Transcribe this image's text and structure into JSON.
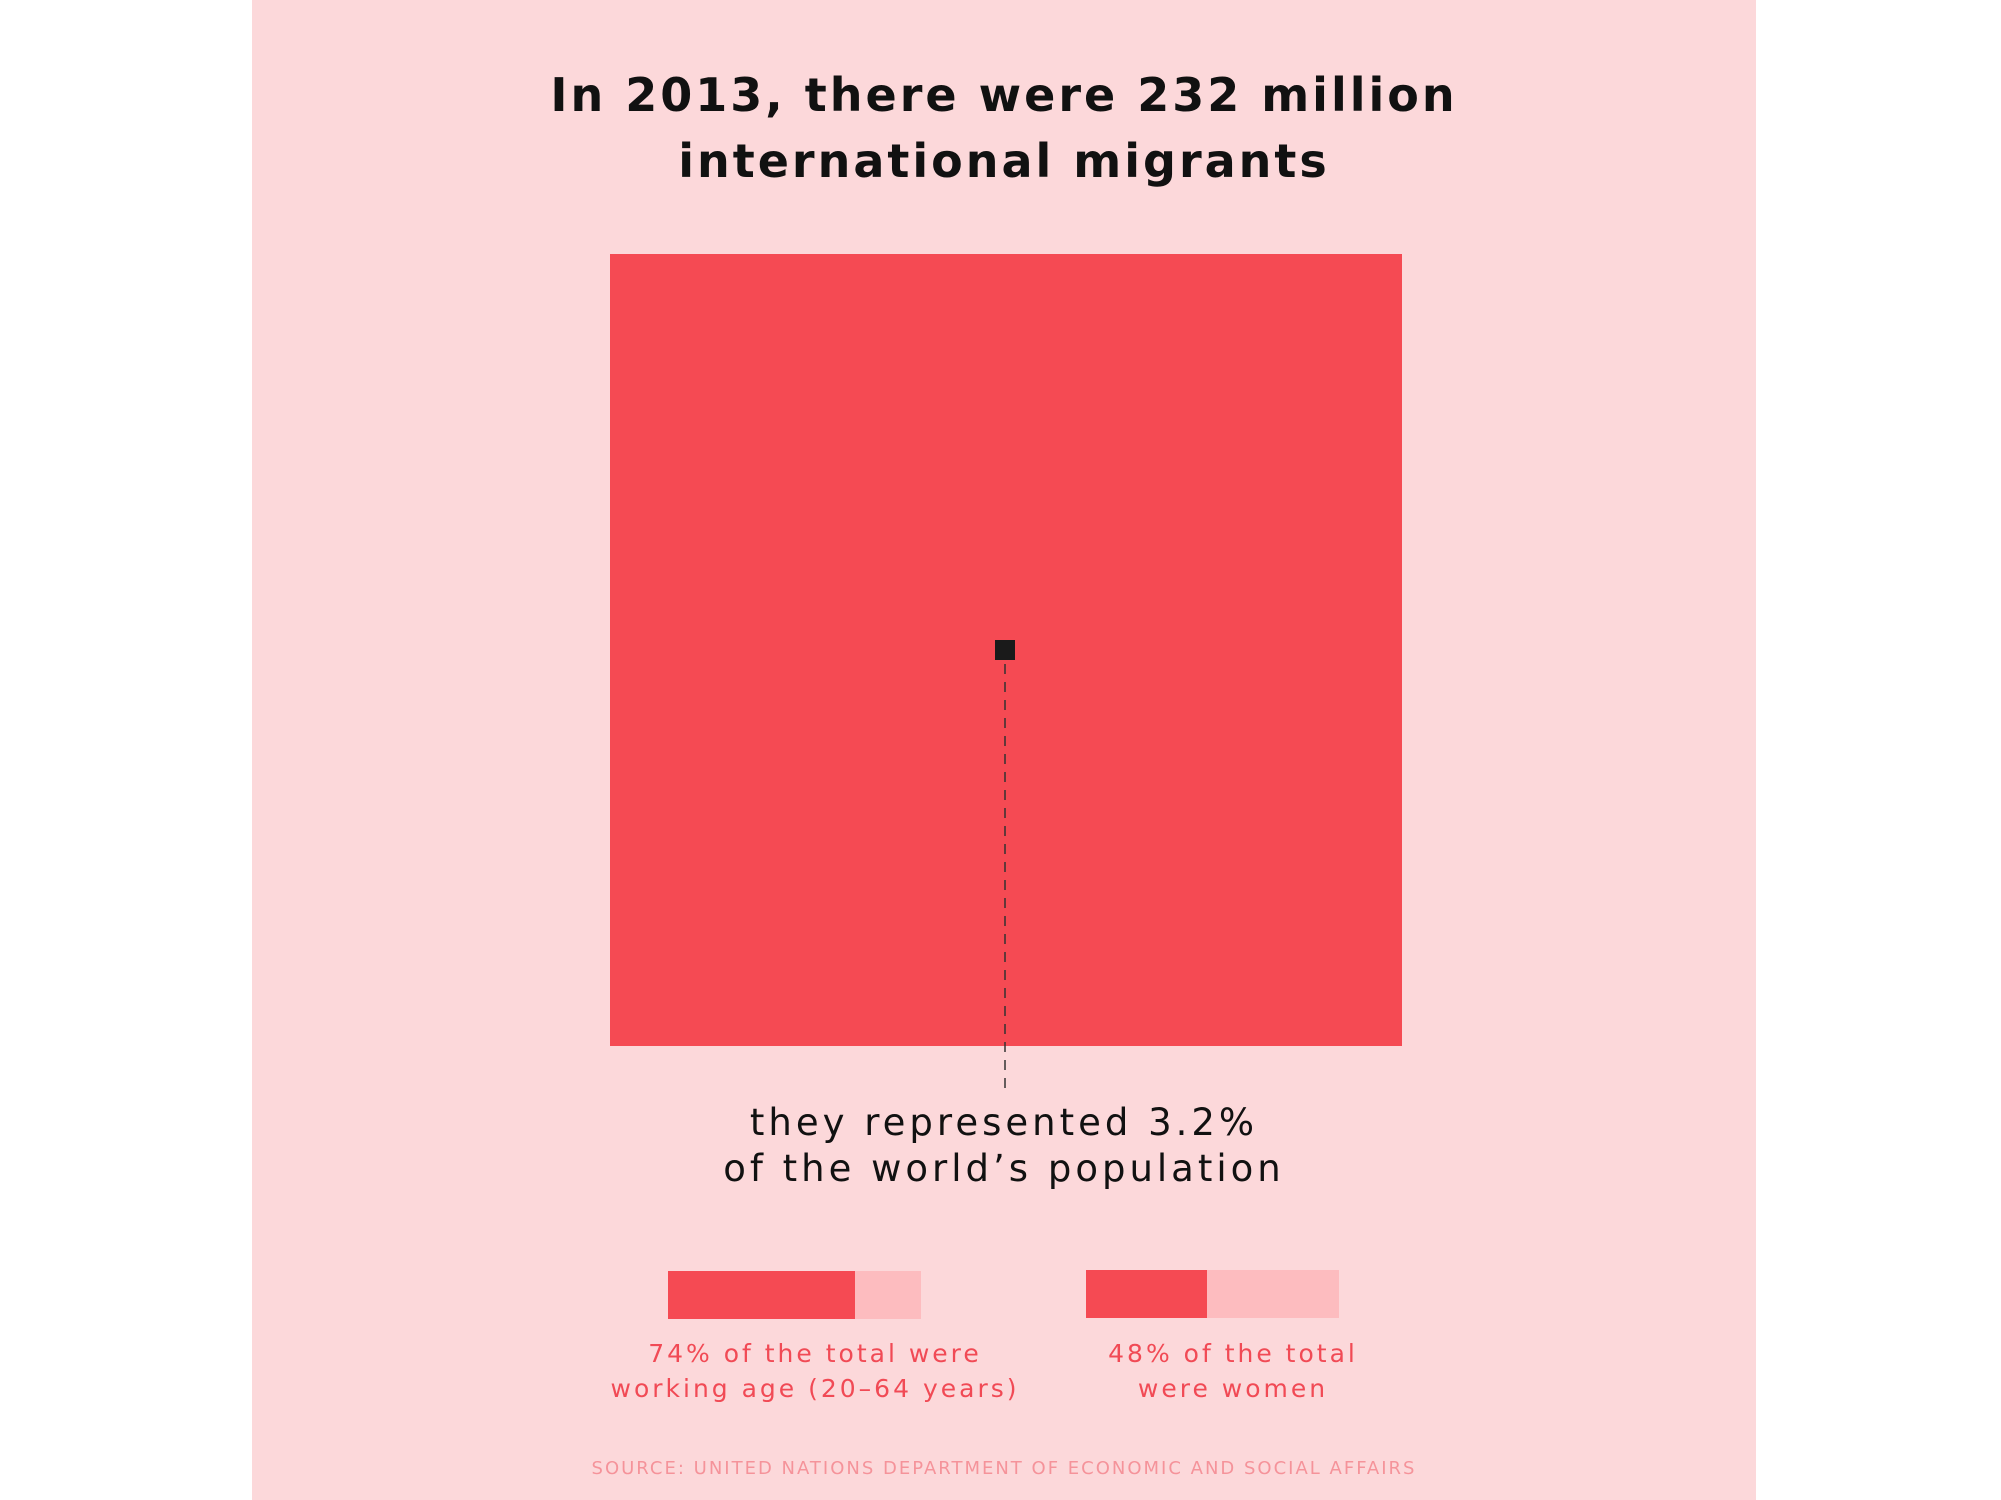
{
  "title": {
    "line1": "In 2013, there were 232 million",
    "line2": "international migrants"
  },
  "caption": {
    "line1": "they represented 3.2%",
    "line2": "of the world’s population"
  },
  "source": "SOURCE: UNITED NATIONS DEPARTMENT OF ECONOMIC AND SOCIAL AFFAIRS",
  "colors": {
    "background": "#fcd8da",
    "world_square": "#f54a53",
    "migrant_square": "#1a1a1a",
    "bar_fill": "#f54a53",
    "bar_remainder": "#fdbcbf",
    "label_text": "#f14a55"
  },
  "chart_data": [
    {
      "type": "area",
      "title": "In 2013, there were 232 million international migrants",
      "total_migrants_millions": 232,
      "share_of_world_population_percent": 3.2,
      "annotation": "they represented 3.2% of the world’s population"
    },
    {
      "type": "bar",
      "stacked": true,
      "stats": [
        {
          "value_percent": 74,
          "label_line1": "74% of the total were",
          "label_line2": "working age (20–64 years)"
        },
        {
          "value_percent": 48,
          "label_line1": "48% of the total",
          "label_line2": "were women"
        }
      ]
    }
  ]
}
